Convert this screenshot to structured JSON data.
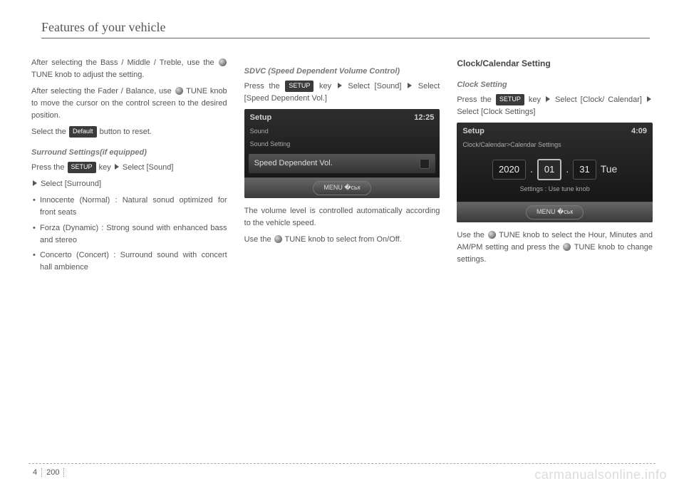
{
  "header": "Features of your vehicle",
  "col1": {
    "p1a": "After selecting the Bass / Middle / Treble, use the ",
    "p1b": " TUNE knob to adjust the setting.",
    "p2a": "After selecting the Fader / Balance, use ",
    "p2b": " TUNE knob to move the cursor on the control screen to the desired position.",
    "p3a": "Select the ",
    "defaultLabel": "Default",
    "p3b": " button to reset.",
    "surroundHead": "Surround Settings(if equipped)",
    "p4a": "Press the ",
    "setupLabel": "SETUP",
    "p4b": " key",
    "p4c": " Select [Sound] ",
    "p4d": " Select [Surround]",
    "b1": "Innocente (Normal) : Natural sonud optimized for front seats",
    "b2": "Forza (Dynamic) : Strong sound  with enhanced bass and stereo",
    "b3": "Concerto (Concert) : Surround sound with concert hall ambience"
  },
  "col2": {
    "sdvcHead": "SDVC (Speed Dependent Volume Control)",
    "p1a": "Press the ",
    "p1b": " key",
    "p1c": "Select [Sound]",
    "p1d": "Select [Speed Dependent Vol.]",
    "device": {
      "title": "Setup",
      "time": "12:25",
      "line1": "Sound",
      "line2": "Sound Setting",
      "row": "Speed Dependent Vol.",
      "menu": "MENU �ськ"
    },
    "p2": "The volume level is controlled automatically according to the vehicle speed.",
    "p3a": "Use  the ",
    "p3b": " TUNE knob to select from On/Off."
  },
  "col3": {
    "mainHead": "Clock/Calendar Setting",
    "clockHead": "Clock Setting",
    "p1a": "Press the ",
    "p1b": " key",
    "p1c": "Select [Clock/ Calendar]",
    "p1d": "Select [Clock Settings]",
    "device": {
      "title": "Setup",
      "time": "4:09",
      "crumb": "Clock/Calendar>Calendar Settings",
      "y": "2020",
      "m": "01",
      "d": "31",
      "dow": "Tue",
      "hint": "Settings : Use tune knob",
      "menu": "MENU �ськ"
    },
    "p2a": "Use  the ",
    "p2b": " TUNE knob to select the Hour, Minutes and AM/PM setting and press the ",
    "p2c": " TUNE knob to change settings."
  },
  "footer": {
    "section": "4",
    "page": "200"
  },
  "watermark": "carmanualsonline.info"
}
